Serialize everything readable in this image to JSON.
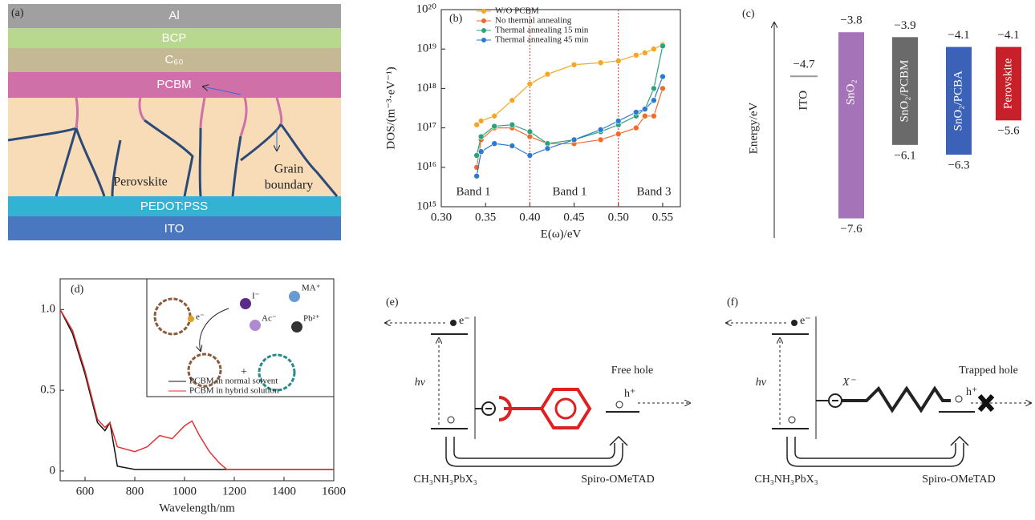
{
  "panel_a": {
    "label": "(a)",
    "layers": [
      "Al",
      "BCP",
      "C₆₀",
      "PCBM",
      "PEDOT:PSS",
      "ITO"
    ],
    "perovskite": "Perovskite",
    "grain_boundary": [
      "Grain",
      "boundary"
    ]
  },
  "chart_data": [
    {
      "type": "line",
      "panel": "(b)",
      "xlabel": "E(ω)/eV",
      "ylabel": "DOS/(m⁻³·eV⁻¹)",
      "log_y": true,
      "legend": "upper-left",
      "x": [
        0.34,
        0.345,
        0.36,
        0.38,
        0.4,
        0.42,
        0.45,
        0.48,
        0.5,
        0.52,
        0.53,
        0.54,
        0.55
      ],
      "series": [
        {
          "name": "W/O PCBM",
          "color": "#f5a623",
          "values": [
            1.2e+17,
            1.5e+17,
            2e+17,
            5e+17,
            1.3e+18,
            2.3e+18,
            4e+18,
            4.5e+18,
            5e+18,
            7e+18,
            8e+18,
            1e+19,
            1.3e+19
          ]
        },
        {
          "name": "No thermal annealing",
          "color": "#f06a28",
          "values": [
            1e+16,
            5e+16,
            1e+17,
            1e+17,
            6e+16,
            4e+16,
            4e+16,
            5e+16,
            7e+16,
            1e+17,
            2e+17,
            2e+17,
            1e+18
          ]
        },
        {
          "name": "Thermal annealing 15 min",
          "color": "#2aa37a",
          "values": [
            2e+16,
            6e+16,
            1.1e+17,
            1.2e+17,
            8e+16,
            4e+16,
            5e+16,
            8e+16,
            1.2e+17,
            2e+17,
            3e+17,
            1e+18,
            1.2e+19
          ]
        },
        {
          "name": "Thermal annealing 45 min",
          "color": "#2a7ad0",
          "values": [
            6000000000000000.0,
            2.5e+16,
            4e+16,
            3.5e+16,
            2e+16,
            3e+16,
            5e+16,
            9e+16,
            1.5e+17,
            2.5e+17,
            3e+17,
            5e+17,
            2e+18
          ]
        }
      ],
      "xlim": [
        0.3,
        0.57
      ],
      "ylim": [
        1000000000000000.0,
        1e+20
      ],
      "xticks": [
        {
          "value": 0.3,
          "label": "0.30"
        },
        0.35,
        {
          "value": 0.4,
          "label": "0.40"
        },
        0.45,
        {
          "value": 0.5,
          "label": "0.50"
        },
        0.55
      ],
      "yticks": [
        {
          "value": 1000000000000000.0,
          "label": "10¹⁵"
        },
        {
          "value": 1e+16,
          "label": "10¹⁶"
        },
        {
          "value": 1e+17,
          "label": "10¹⁷"
        },
        {
          "value": 1e+18,
          "label": "10¹⁸"
        },
        {
          "value": 1e+19,
          "label": "10¹⁹"
        },
        {
          "value": 1e+20,
          "label": "10²⁰"
        }
      ],
      "vlines": [
        0.4,
        0.5
      ],
      "vline_color": "#e03030",
      "annotations": [
        "Band 1",
        "Band 1",
        "Band 3"
      ]
    },
    {
      "type": "range-bar",
      "panel": "(c)",
      "ylabel": "Energy/eV",
      "categories": [
        "ITO",
        "SnO₂",
        "SnO₂/PCBM",
        "SnO₂/PCBA",
        "Perovskite"
      ],
      "colors": [
        "#999999",
        "#a574b8",
        "#6a6a6a",
        "#3b62b8",
        "#c8202a"
      ],
      "high": {
        "values": [
          -4.7,
          -3.8,
          -3.9,
          -4.1,
          -4.1
        ],
        "value_labels": [
          "−4.7",
          "−3.8",
          "−3.9",
          "−4.1",
          "−4.1"
        ]
      },
      "low": {
        "values": [
          null,
          -7.6,
          -6.1,
          -6.3,
          -5.6
        ],
        "value_labels": [
          null,
          "−7.6",
          "−6.1",
          "−6.3",
          "−5.6"
        ]
      },
      "ylim": [
        -8.0,
        -3.6
      ]
    },
    {
      "type": "line",
      "panel": "(d)",
      "xlabel": "Wavelength/nm",
      "x": [
        500,
        550,
        600,
        650,
        680,
        700,
        730,
        800,
        850,
        900,
        950,
        1000,
        1030,
        1060,
        1100,
        1140,
        1170,
        1200,
        1400,
        1600
      ],
      "series": [
        {
          "name": "PCBM in normal solvent",
          "color": "#111111",
          "values": [
            1.0,
            0.85,
            0.6,
            0.3,
            0.25,
            0.3,
            0.03,
            0.01,
            0.01,
            0.01,
            0.01,
            0.01,
            0.01,
            0.01,
            0.01,
            0.01,
            0.01,
            0.01,
            0.01,
            0.01
          ]
        },
        {
          "name": "PCBM in hybrid solution",
          "color": "#e03030",
          "values": [
            1.0,
            0.87,
            0.62,
            0.32,
            0.27,
            0.3,
            0.15,
            0.12,
            0.15,
            0.22,
            0.2,
            0.28,
            0.31,
            0.22,
            0.12,
            0.05,
            0.01,
            0.01,
            0.01,
            0.01
          ]
        }
      ],
      "xlim": [
        500,
        1600
      ],
      "ylim": [
        -0.06,
        1.19
      ],
      "xticks": [
        600,
        800,
        1000,
        1200,
        1400,
        1600
      ],
      "yticks": [
        0,
        0.5,
        {
          "value": 1.0,
          "label": "1.0"
        }
      ],
      "inset_labels": [
        "I⁻",
        "MA⁺",
        "Ac⁻",
        "Pb²⁺",
        "e⁻"
      ]
    }
  ],
  "panel_e": {
    "label": "(e)",
    "electron": "e⁻",
    "photon": "hν",
    "hole_state": "Free hole",
    "hole": "h⁺",
    "left": "CH₃NH₃PbX₃",
    "right": "Spiro-OMeTAD"
  },
  "panel_f": {
    "label": "(f)",
    "electron": "e⁻",
    "photon": "hν",
    "anion": "X⁻",
    "hole_state": "Trapped hole",
    "hole": "h⁺",
    "left": "CH₃NH₃PbX₃",
    "right": "Spiro-OMeTAD"
  }
}
